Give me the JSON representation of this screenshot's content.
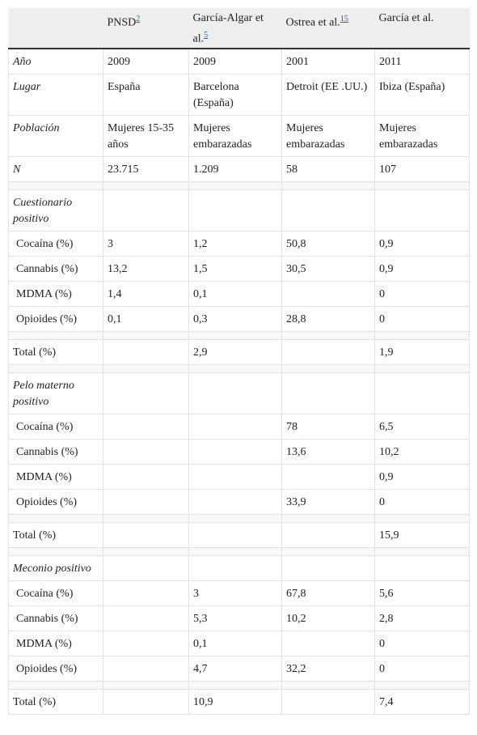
{
  "table": {
    "header": [
      null,
      {
        "text": "PNSD",
        "ref": "2"
      },
      {
        "text": "García-Algar et al.",
        "ref": "5"
      },
      {
        "text": "Ostrea et al.",
        "ref": "15"
      },
      {
        "text": "García et al.",
        "ref": null
      }
    ],
    "groups": [
      {
        "rows": [
          [
            "Año",
            "2009",
            "2009",
            "2001",
            "2011"
          ],
          [
            "Lugar",
            "España",
            "Barcelona (España)",
            "Detroit (EE .UU.)",
            "Ibiza (España)"
          ],
          [
            "Población",
            "Mujeres 15-35 años",
            "Mujeres embarazadas",
            "Mujeres embarazadas",
            "Mujeres embarazadas"
          ],
          [
            "N",
            "23.715",
            "1.209",
            "58",
            "107"
          ]
        ]
      },
      {
        "rows": [
          [
            "Cuestionario positivo",
            null,
            null,
            null,
            null
          ],
          [
            "Cocaína (%)",
            "3",
            "1,2",
            "50,8",
            "0,9"
          ],
          [
            "Cannabis (%)",
            "13,2",
            "1,5",
            "30,5",
            "0,9"
          ],
          [
            "MDMA (%)",
            "1,4",
            "0,1",
            null,
            "0"
          ],
          [
            "Opioides (%)",
            "0,1",
            "0,3",
            "28,8",
            "0"
          ]
        ]
      },
      {
        "rows": [
          [
            "Total (%)",
            null,
            "2,9",
            null,
            "1,9"
          ]
        ]
      },
      {
        "rows": [
          [
            "Pelo materno positivo",
            null,
            null,
            null,
            null
          ],
          [
            "Cocaína (%)",
            null,
            null,
            "78",
            "6,5"
          ],
          [
            "Cannabis (%)",
            null,
            null,
            "13,6",
            "10,2"
          ],
          [
            "MDMA (%)",
            null,
            null,
            null,
            "0,9"
          ],
          [
            "Opioides (%)",
            null,
            null,
            "33,9",
            "0"
          ]
        ]
      },
      {
        "rows": [
          [
            "Total (%)",
            null,
            null,
            null,
            "15,9"
          ]
        ]
      },
      {
        "rows": [
          [
            "Meconio positivo",
            null,
            null,
            null,
            null
          ],
          [
            "Cocaína (%)",
            null,
            "3",
            "67,8",
            "5,6"
          ],
          [
            "Cannabis (%)",
            null,
            "5,3",
            "10,2",
            "2,8"
          ],
          [
            "MDMA (%)",
            null,
            "0,1",
            null,
            "0"
          ],
          [
            "Opioides (%)",
            null,
            "4,7",
            "32,2",
            "0"
          ]
        ]
      },
      {
        "rows": [
          [
            "Total (%)",
            null,
            "10,9",
            null,
            "7,4"
          ]
        ]
      }
    ]
  }
}
